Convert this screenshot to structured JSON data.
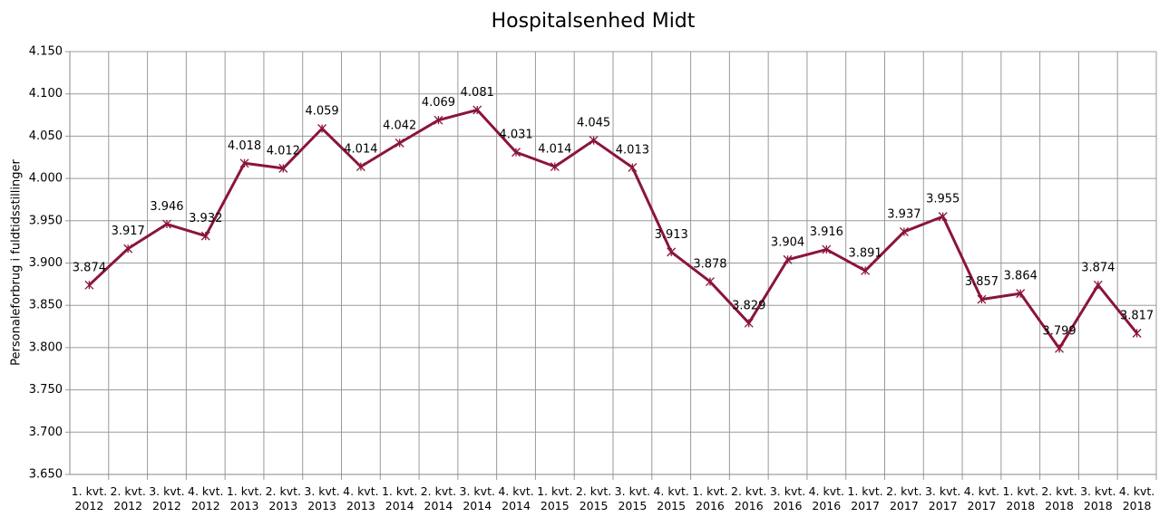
{
  "chart_data": {
    "type": "line",
    "title": "Hospitalsenhed Midt",
    "y_label": "Personaleforbrug i fuldtidsstillinger",
    "categories": [
      "1. kvt. 2012",
      "2. kvt. 2012",
      "3. kvt. 2012",
      "4. kvt. 2012",
      "1. kvt. 2013",
      "2. kvt. 2013",
      "3. kvt. 2013",
      "4. kvt. 2013",
      "1. kvt. 2014",
      "2. kvt. 2014",
      "3. kvt. 2014",
      "4. kvt. 2014",
      "1. kvt. 2015",
      "2. kvt. 2015",
      "3. kvt. 2015",
      "4. kvt. 2015",
      "1. kvt. 2016",
      "2. kvt. 2016",
      "3. kvt. 2016",
      "4. kvt. 2016",
      "1. kvt. 2017",
      "2. kvt. 2017",
      "3. kvt. 2017",
      "4. kvt. 2017",
      "1. kvt. 2018",
      "2. kvt. 2018",
      "3. kvt. 2018",
      "4. kvt. 2018"
    ],
    "values": [
      3874,
      3917,
      3946,
      3932,
      4018,
      4012,
      4059,
      4014,
      4042,
      4069,
      4081,
      4031,
      4014,
      4045,
      4013,
      3913,
      3878,
      3829,
      3904,
      3916,
      3891,
      3937,
      3955,
      3857,
      3864,
      3799,
      3874,
      3817
    ],
    "value_labels": [
      "3.874",
      "3.917",
      "3.946",
      "3.932",
      "4.018",
      "4.012",
      "4.059",
      "4.014",
      "4.042",
      "4.069",
      "4.081",
      "4.031",
      "4.014",
      "4.045",
      "4.013",
      "3.913",
      "3.878",
      "3.829",
      "3.904",
      "3.916",
      "3.891",
      "3.937",
      "3.955",
      "3.857",
      "3.864",
      "3.799",
      "3.874",
      "3.817"
    ],
    "color": "#8b1538",
    "ylim": [
      3650,
      4150
    ],
    "yticks": [
      {
        "value": 3650,
        "label": "3.650"
      },
      {
        "value": 3700,
        "label": "3.700"
      },
      {
        "value": 3750,
        "label": "3.750"
      },
      {
        "value": 3800,
        "label": "3.800"
      },
      {
        "value": 3850,
        "label": "3.850"
      },
      {
        "value": 3900,
        "label": "3.900"
      },
      {
        "value": 3950,
        "label": "3.950"
      },
      {
        "value": 4000,
        "label": "4.000"
      },
      {
        "value": 4050,
        "label": "4.050"
      },
      {
        "value": 4100,
        "label": "4.100"
      },
      {
        "value": 4150,
        "label": "4.150"
      }
    ],
    "grid": true
  }
}
